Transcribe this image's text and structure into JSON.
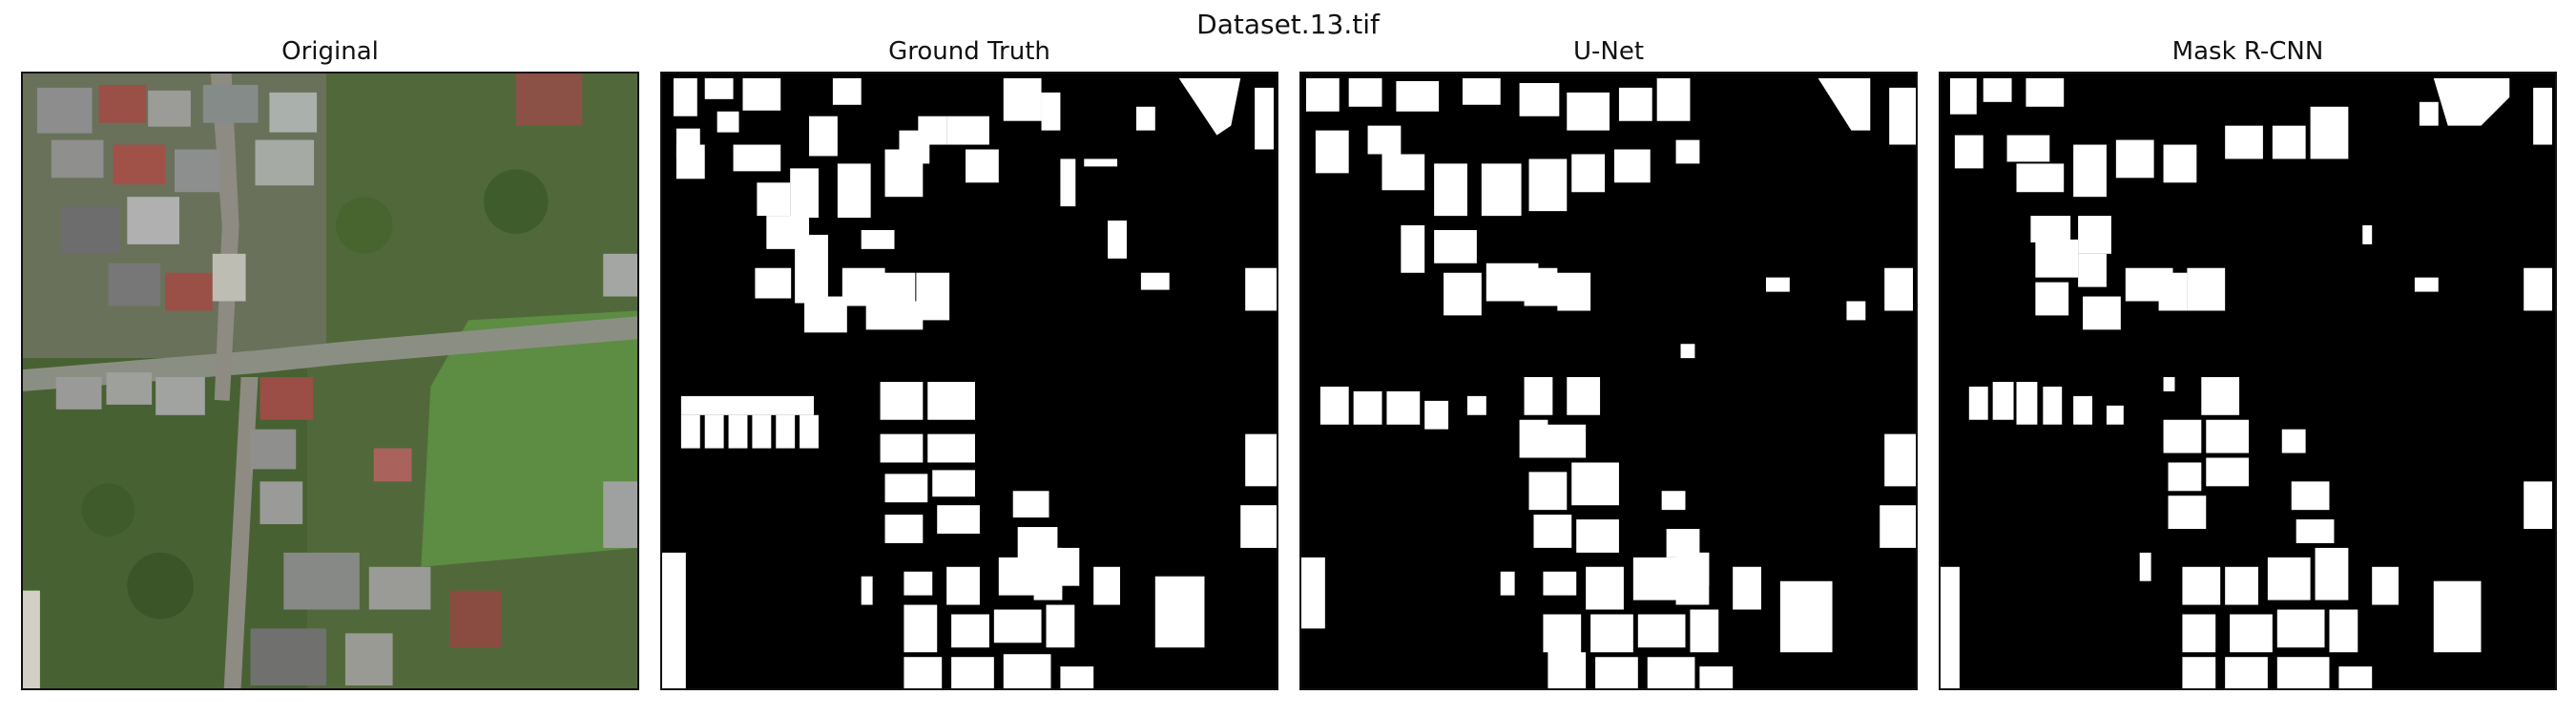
{
  "figure": {
    "title": "Dataset.13.tif"
  },
  "panels": [
    {
      "title": "Original"
    },
    {
      "title": "Ground Truth"
    },
    {
      "title": "U-Net"
    },
    {
      "title": "Mask R-CNN"
    }
  ],
  "colors": {
    "mask_background": "#000000",
    "mask_foreground": "#ffffff",
    "aerial_vegetation": "#4e6b34",
    "aerial_field": "#5f8f45",
    "aerial_roof_gray": "#8f8f8f",
    "aerial_roof_red": "#9a4f45"
  }
}
